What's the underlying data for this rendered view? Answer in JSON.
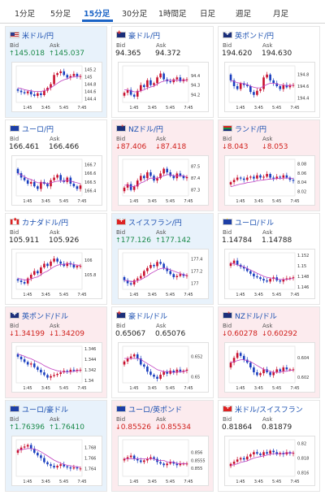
{
  "tabs": [
    {
      "label": "1分足",
      "active": false
    },
    {
      "label": "5分足",
      "active": false
    },
    {
      "label": "15分足",
      "active": true
    },
    {
      "label": "30分足",
      "active": false
    },
    {
      "label": "1時間足",
      "active": false
    },
    {
      "label": "日足",
      "active": false
    },
    {
      "label": "週足",
      "active": false
    },
    {
      "label": "月足",
      "active": false
    }
  ],
  "colors": {
    "up": "#1a8a4a",
    "down": "#d0201c",
    "accent": "#1a63c6",
    "candle_up": "#c8102e",
    "candle_down": "#1a3fbf",
    "ma": "#c040c0"
  },
  "pairs": [
    {
      "name": "米ドル/円",
      "flag": "us",
      "trend": "up",
      "bid": "145.018",
      "ask": "145.037",
      "yticks": [
        "145.2",
        "145",
        "144.8",
        "144.6",
        "144.4"
      ],
      "xticks": [
        "1:45",
        "3:45",
        "5:45",
        "7:45"
      ],
      "chart_data": {
        "type": "candlestick",
        "ylim": [
          144.3,
          145.3
        ],
        "close": [
          144.62,
          144.58,
          144.55,
          144.6,
          144.52,
          144.48,
          144.55,
          144.5,
          144.62,
          144.7,
          144.8,
          145.05,
          145.1,
          145.15,
          145.05,
          144.98,
          145.02,
          145.08,
          145.0,
          145.02
        ],
        "ma": [
          144.7,
          144.68,
          144.65,
          144.63,
          144.62,
          144.6,
          144.6,
          144.6,
          144.62,
          144.65,
          144.7,
          144.76,
          144.82,
          144.88,
          144.92,
          144.95,
          144.98,
          145.0,
          145.01,
          145.02
        ]
      }
    },
    {
      "name": "豪ドル/円",
      "flag": "au",
      "trend": "neutral",
      "bid": "94.365",
      "ask": "94.372",
      "yticks": [
        "94.4",
        "94.3",
        "94.2"
      ],
      "xticks": [
        "1:45",
        "3:45",
        "5:45",
        "7:45"
      ],
      "chart_data": {
        "type": "candlestick",
        "ylim": [
          94.12,
          94.5
        ],
        "close": [
          94.22,
          94.25,
          94.2,
          94.18,
          94.24,
          94.3,
          94.28,
          94.35,
          94.3,
          94.32,
          94.38,
          94.42,
          94.36,
          94.34,
          94.33,
          94.36,
          94.38,
          94.34,
          94.36,
          94.36
        ],
        "ma": [
          94.25,
          94.25,
          94.24,
          94.23,
          94.23,
          94.24,
          94.25,
          94.27,
          94.28,
          94.29,
          94.31,
          94.33,
          94.34,
          94.35,
          94.35,
          94.35,
          94.35,
          94.35,
          94.35,
          94.35
        ]
      }
    },
    {
      "name": "英ポンド/円",
      "flag": "gb",
      "trend": "neutral",
      "bid": "194.620",
      "ask": "194.630",
      "yticks": [
        "194.8",
        "194.6",
        "194.4"
      ],
      "xticks": [
        "1:45",
        "3:45",
        "5:45",
        "7:45"
      ],
      "chart_data": {
        "type": "candlestick",
        "ylim": [
          194.32,
          194.95
        ],
        "close": [
          194.7,
          194.6,
          194.55,
          194.65,
          194.62,
          194.6,
          194.5,
          194.45,
          194.52,
          194.55,
          194.75,
          194.8,
          194.7,
          194.65,
          194.6,
          194.55,
          194.62,
          194.58,
          194.62,
          194.62
        ],
        "ma": [
          194.7,
          194.68,
          194.66,
          194.65,
          194.64,
          194.63,
          194.6,
          194.58,
          194.57,
          194.57,
          194.6,
          194.63,
          194.65,
          194.65,
          194.64,
          194.62,
          194.62,
          194.61,
          194.61,
          194.62
        ]
      }
    },
    {
      "name": "ユーロ/円",
      "flag": "eu",
      "trend": "neutral",
      "bid": "166.461",
      "ask": "166.466",
      "yticks": [
        "166.7",
        "166.6",
        "166.5",
        "166.4"
      ],
      "xticks": [
        "1:45",
        "3:45",
        "5:45",
        "7:45"
      ],
      "chart_data": {
        "type": "candlestick",
        "ylim": [
          166.34,
          166.76
        ],
        "close": [
          166.6,
          166.55,
          166.52,
          166.48,
          166.5,
          166.45,
          166.42,
          166.5,
          166.48,
          166.45,
          166.52,
          166.55,
          166.58,
          166.52,
          166.5,
          166.55,
          166.48,
          166.45,
          166.42,
          166.46
        ],
        "ma": [
          166.6,
          166.58,
          166.56,
          166.54,
          166.53,
          166.51,
          166.49,
          166.49,
          166.49,
          166.48,
          166.49,
          166.5,
          166.51,
          166.51,
          166.51,
          166.52,
          166.51,
          166.5,
          166.49,
          166.48
        ]
      }
    },
    {
      "name": "NZドル/円",
      "flag": "nz",
      "trend": "down",
      "bid": "87.406",
      "ask": "87.418",
      "yticks": [
        "87.5",
        "87.4",
        "87.3"
      ],
      "xticks": [
        "1:45",
        "3:45",
        "5:45",
        "7:45"
      ],
      "chart_data": {
        "type": "candlestick",
        "ylim": [
          87.25,
          87.56
        ],
        "close": [
          87.32,
          87.35,
          87.3,
          87.33,
          87.38,
          87.42,
          87.4,
          87.45,
          87.42,
          87.38,
          87.4,
          87.44,
          87.48,
          87.45,
          87.42,
          87.4,
          87.44,
          87.42,
          87.4,
          87.41
        ],
        "ma": [
          87.34,
          87.34,
          87.33,
          87.33,
          87.34,
          87.36,
          87.37,
          87.39,
          87.4,
          87.4,
          87.4,
          87.41,
          87.42,
          87.43,
          87.43,
          87.42,
          87.42,
          87.42,
          87.42,
          87.41
        ]
      }
    },
    {
      "name": "ランド/円",
      "flag": "za",
      "trend": "down",
      "bid": "8.043",
      "ask": "8.053",
      "yticks": [
        "8.08",
        "8.06",
        "8.04",
        "8.02"
      ],
      "xticks": [
        "1:45",
        "3:45",
        "5:45",
        "7:45"
      ],
      "chart_data": {
        "type": "candlestick",
        "ylim": [
          8.01,
          8.09
        ],
        "close": [
          8.04,
          8.045,
          8.05,
          8.048,
          8.045,
          8.05,
          8.052,
          8.048,
          8.055,
          8.05,
          8.052,
          8.058,
          8.05,
          8.048,
          8.052,
          8.05,
          8.055,
          8.05,
          8.045,
          8.043
        ],
        "ma": [
          8.03,
          8.032,
          8.034,
          8.036,
          8.037,
          8.039,
          8.04,
          8.041,
          8.043,
          8.044,
          8.045,
          8.046,
          8.047,
          8.047,
          8.048,
          8.048,
          8.049,
          8.049,
          8.049,
          8.048
        ]
      }
    },
    {
      "name": "カナダドル/円",
      "flag": "ca",
      "trend": "neutral",
      "bid": "105.911",
      "ask": "105.926",
      "yticks": [
        "106",
        "105.8"
      ],
      "xticks": [
        "1:45",
        "3:45",
        "5:45",
        "7:45"
      ],
      "chart_data": {
        "type": "candlestick",
        "ylim": [
          105.6,
          106.1
        ],
        "close": [
          105.72,
          105.7,
          105.68,
          105.75,
          105.8,
          105.85,
          105.82,
          105.9,
          105.95,
          105.92,
          105.98,
          106.02,
          105.98,
          105.95,
          105.92,
          105.96,
          105.94,
          105.9,
          105.92,
          105.92
        ],
        "ma": [
          105.75,
          105.74,
          105.73,
          105.73,
          105.74,
          105.76,
          105.77,
          105.8,
          105.83,
          105.85,
          105.88,
          105.91,
          105.93,
          105.94,
          105.94,
          105.95,
          105.95,
          105.94,
          105.93,
          105.93
        ]
      }
    },
    {
      "name": "スイスフラン/円",
      "flag": "ch",
      "trend": "up",
      "bid": "177.126",
      "ask": "177.142",
      "yticks": [
        "177.4",
        "177.2",
        "177"
      ],
      "xticks": [
        "1:45",
        "3:45",
        "5:45",
        "7:45"
      ],
      "chart_data": {
        "type": "candlestick",
        "ylim": [
          176.9,
          177.5
        ],
        "close": [
          177.05,
          177.0,
          176.98,
          177.05,
          177.08,
          177.12,
          177.2,
          177.25,
          177.3,
          177.28,
          177.35,
          177.32,
          177.25,
          177.2,
          177.15,
          177.1,
          177.12,
          177.15,
          177.12,
          177.13
        ],
        "ma": [
          177.05,
          177.04,
          177.03,
          177.03,
          177.04,
          177.06,
          177.09,
          177.12,
          177.16,
          177.19,
          177.22,
          177.24,
          177.25,
          177.24,
          177.22,
          177.2,
          177.18,
          177.16,
          177.14,
          177.13
        ]
      }
    },
    {
      "name": "ユーロ/ドル",
      "flag": "eu",
      "trend": "neutral",
      "bid": "1.14784",
      "ask": "1.14788",
      "yticks": [
        "1.152",
        "1.15",
        "1.148",
        "1.146"
      ],
      "xticks": [
        "1:45",
        "3:45",
        "5:45",
        "7:45"
      ],
      "chart_data": {
        "type": "candlestick",
        "ylim": [
          1.1455,
          1.1525
        ],
        "close": [
          1.1505,
          1.151,
          1.1502,
          1.1498,
          1.1495,
          1.149,
          1.1485,
          1.148,
          1.1478,
          1.1475,
          1.1472,
          1.147,
          1.1475,
          1.1478,
          1.1472,
          1.147,
          1.1474,
          1.1476,
          1.1477,
          1.1478
        ],
        "ma": [
          1.1505,
          1.1504,
          1.1502,
          1.15,
          1.1498,
          1.1495,
          1.1492,
          1.1489,
          1.1486,
          1.1483,
          1.148,
          1.1478,
          1.1477,
          1.1476,
          1.1475,
          1.1474,
          1.1474,
          1.1474,
          1.1475,
          1.1476
        ]
      }
    },
    {
      "name": "英ポンド/ドル",
      "flag": "gb",
      "trend": "down",
      "bid": "1.34199",
      "ask": "1.34209",
      "yticks": [
        "1.346",
        "1.344",
        "1.342",
        "1.34"
      ],
      "xticks": [
        "1:45",
        "3:45",
        "5:45",
        "7:45"
      ],
      "chart_data": {
        "type": "candlestick",
        "ylim": [
          1.3395,
          1.3465
        ],
        "close": [
          1.3445,
          1.344,
          1.3435,
          1.343,
          1.3432,
          1.3425,
          1.342,
          1.3415,
          1.341,
          1.3405,
          1.3408,
          1.341,
          1.3412,
          1.3415,
          1.3418,
          1.3416,
          1.342,
          1.3418,
          1.342,
          1.342
        ],
        "ma": [
          1.345,
          1.3448,
          1.3446,
          1.3443,
          1.3441,
          1.3438,
          1.3435,
          1.3432,
          1.3428,
          1.3425,
          1.3422,
          1.342,
          1.3418,
          1.3417,
          1.3416,
          1.3416,
          1.3416,
          1.3417,
          1.3418,
          1.3419
        ]
      }
    },
    {
      "name": "豪ドル/ドル",
      "flag": "au",
      "trend": "neutral",
      "bid": "0.65067",
      "ask": "0.65076",
      "yticks": [
        "0.652",
        "0.65"
      ],
      "xticks": [
        "1:45",
        "3:45",
        "5:45",
        "7:45"
      ],
      "chart_data": {
        "type": "candlestick",
        "ylim": [
          0.6494,
          0.653
        ],
        "close": [
          0.6515,
          0.6518,
          0.652,
          0.6522,
          0.6518,
          0.6512,
          0.651,
          0.6505,
          0.6502,
          0.65,
          0.6498,
          0.6502,
          0.6505,
          0.6503,
          0.6506,
          0.6504,
          0.6507,
          0.6505,
          0.6506,
          0.6507
        ],
        "ma": [
          0.6518,
          0.6518,
          0.6518,
          0.6518,
          0.6518,
          0.6517,
          0.6515,
          0.6513,
          0.6511,
          0.6509,
          0.6507,
          0.6506,
          0.6505,
          0.6505,
          0.6505,
          0.6504,
          0.6505,
          0.6505,
          0.6505,
          0.6506
        ]
      }
    },
    {
      "name": "NZドル/ドル",
      "flag": "nz",
      "trend": "down",
      "bid": "0.60278",
      "ask": "0.60292",
      "yticks": [
        "0.604",
        "0.602"
      ],
      "xticks": [
        "1:45",
        "3:45",
        "5:45",
        "7:45"
      ],
      "chart_data": {
        "type": "candlestick",
        "ylim": [
          0.6014,
          0.6052
        ],
        "close": [
          0.6035,
          0.604,
          0.6045,
          0.6042,
          0.6038,
          0.6035,
          0.603,
          0.6025,
          0.6022,
          0.6024,
          0.6028,
          0.6025,
          0.6022,
          0.6025,
          0.6028,
          0.6026,
          0.603,
          0.6028,
          0.6028,
          0.6028
        ],
        "ma": [
          0.6035,
          0.6036,
          0.6037,
          0.6038,
          0.6038,
          0.6037,
          0.6036,
          0.6034,
          0.6032,
          0.603,
          0.6028,
          0.6027,
          0.6026,
          0.6025,
          0.6025,
          0.6025,
          0.6026,
          0.6026,
          0.6027,
          0.6027
        ]
      }
    },
    {
      "name": "ユーロ/豪ドル",
      "flag": "eu",
      "trend": "up",
      "bid": "1.76396",
      "ask": "1.76410",
      "yticks": [
        "1.768",
        "1.766",
        "1.764"
      ],
      "xticks": [
        "1:45",
        "3:45",
        "5:45",
        "7:45"
      ],
      "chart_data": {
        "type": "candlestick",
        "ylim": [
          1.7625,
          1.7695
        ],
        "close": [
          1.7675,
          1.768,
          1.7682,
          1.7685,
          1.7678,
          1.767,
          1.7665,
          1.766,
          1.7652,
          1.7648,
          1.7645,
          1.7642,
          1.7645,
          1.7648,
          1.7644,
          1.7642,
          1.764,
          1.7642,
          1.764,
          1.764
        ],
        "ma": [
          1.7675,
          1.7676,
          1.7677,
          1.7678,
          1.7678,
          1.7677,
          1.7675,
          1.7672,
          1.7668,
          1.7664,
          1.766,
          1.7656,
          1.7653,
          1.765,
          1.7648,
          1.7646,
          1.7645,
          1.7644,
          1.7643,
          1.7642
        ]
      }
    },
    {
      "name": "ユーロ/英ポンド",
      "flag": "eu",
      "trend": "down",
      "bid": "0.85526",
      "ask": "0.85534",
      "yticks": [
        "0.856",
        "0.8555",
        "0.855"
      ],
      "xticks": [
        "1:45",
        "3:45",
        "5:45",
        "7:45"
      ],
      "chart_data": {
        "type": "candlestick",
        "ylim": [
          0.8545,
          0.8568
        ],
        "close": [
          0.8556,
          0.8557,
          0.8558,
          0.8556,
          0.8555,
          0.8554,
          0.8555,
          0.8556,
          0.8557,
          0.8556,
          0.8554,
          0.8553,
          0.8552,
          0.8553,
          0.8554,
          0.8553,
          0.8552,
          0.8553,
          0.8553,
          0.8553
        ],
        "ma": [
          0.8556,
          0.8556,
          0.8556,
          0.8556,
          0.8556,
          0.8556,
          0.8556,
          0.8556,
          0.8556,
          0.8556,
          0.8555,
          0.8555,
          0.8555,
          0.8554,
          0.8554,
          0.8554,
          0.8553,
          0.8553,
          0.8553,
          0.8553
        ]
      }
    },
    {
      "name": "米ドル/スイスフラン",
      "flag": "ch",
      "trend": "neutral",
      "bid": "0.81864",
      "ask": "0.81879",
      "yticks": [
        "0.82",
        "0.818",
        "0.816"
      ],
      "xticks": [
        "1:45",
        "3:45",
        "5:45",
        "7:45"
      ],
      "chart_data": {
        "type": "candlestick",
        "ylim": [
          0.8155,
          0.8205
        ],
        "close": [
          0.8172,
          0.8175,
          0.8178,
          0.818,
          0.8178,
          0.8182,
          0.8185,
          0.8188,
          0.8186,
          0.8184,
          0.8188,
          0.8186,
          0.819,
          0.8188,
          0.8185,
          0.8187,
          0.8185,
          0.8188,
          0.8186,
          0.8187
        ],
        "ma": [
          0.817,
          0.8171,
          0.8172,
          0.8174,
          0.8175,
          0.8176,
          0.8178,
          0.818,
          0.8181,
          0.8182,
          0.8183,
          0.8184,
          0.8185,
          0.8186,
          0.8186,
          0.8186,
          0.8186,
          0.8187,
          0.8187,
          0.8187
        ]
      }
    }
  ]
}
